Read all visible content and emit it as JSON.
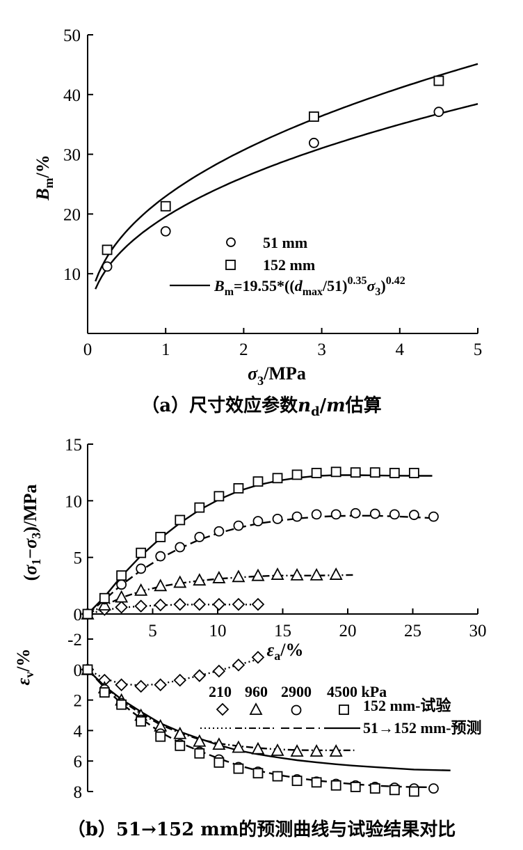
{
  "chart_data": [
    {
      "type": "scatter",
      "panel": "a",
      "caption": "（a）尺寸效应参数n_d/m估算",
      "xlabel": "σ3/MPa",
      "ylabel": "Bm/%",
      "xlim": [
        0,
        5
      ],
      "ylim": [
        0,
        50
      ],
      "xticks": [
        0,
        1,
        2,
        3,
        4,
        5
      ],
      "yticks": [
        10,
        20,
        30,
        40,
        50
      ],
      "grid": false,
      "legend_position": "center-right",
      "legend": [
        "51 mm",
        "152 mm",
        "Bm=19.55*((dmax/51)^0.35σ3)^0.42"
      ],
      "series": [
        {
          "name": "51 mm",
          "marker": "circle",
          "x": [
            0.25,
            1.0,
            2.9,
            4.5
          ],
          "y": [
            11.2,
            17.1,
            31.9,
            37.1
          ]
        },
        {
          "name": "152 mm",
          "marker": "square",
          "x": [
            0.25,
            1.0,
            2.9,
            4.5
          ],
          "y": [
            14.0,
            21.3,
            36.3,
            42.3
          ]
        }
      ],
      "fit": {
        "expression": "Bm=19.55*((dmax/51)^0.35σ3)^0.42",
        "coefficient": 19.55,
        "base_size": 51,
        "size_exponent": 0.35,
        "stress_exponent": 0.42,
        "dmax_values": [
          51,
          152
        ],
        "x_range": [
          0.1,
          5
        ]
      }
    },
    {
      "type": "scatter",
      "panel": "b",
      "caption": "（b）51→152 mm的预测曲线与试验结果对比",
      "xlabel": "εa/%",
      "ylabel_top": "(σ1−σ3)/MPa",
      "ylabel_bottom": "εv/%",
      "xlim": [
        0,
        30
      ],
      "xticks": [
        5,
        10,
        15,
        20,
        25,
        30
      ],
      "ylim_top": [
        0,
        15
      ],
      "yticks_top": [
        0,
        5,
        10,
        15
      ],
      "ylim_bottom": [
        -2,
        8
      ],
      "yticks_bottom": [
        -2,
        0,
        2,
        4,
        6,
        8
      ],
      "grid": false,
      "legend_position": "lower-right",
      "legend_header": [
        "210",
        "960",
        "2900",
        "4500 kPa"
      ],
      "legend_rows": [
        "152 mm-试验",
        "51→152 mm-预测"
      ],
      "series": [
        {
          "name": "210 kPa",
          "marker": "diamond",
          "line": "dotted",
          "x": [
            0,
            1.3,
            2.6,
            4.1,
            5.6,
            7.1,
            8.6,
            10.1,
            11.6,
            13.1
          ],
          "stress": [
            0,
            0.4,
            0.6,
            0.7,
            0.8,
            0.85,
            0.85,
            0.85,
            0.85,
            0.85
          ],
          "pred_stress_x": [
            0,
            13.1
          ],
          "strain_x": [
            0,
            1.3,
            2.6,
            4.1,
            5.6,
            7.1,
            8.6,
            10.1,
            11.6,
            13.1
          ],
          "strain": [
            0,
            0.7,
            1.0,
            1.1,
            1.0,
            0.7,
            0.4,
            0.1,
            -0.3,
            -0.8
          ]
        },
        {
          "name": "960 kPa",
          "marker": "triangle",
          "line": "dash-dot",
          "x": [
            0,
            1.3,
            2.6,
            4.1,
            5.6,
            7.1,
            8.6,
            10.1,
            11.6,
            13.1,
            14.6,
            16.1,
            17.6,
            19.1
          ],
          "stress": [
            0,
            0.8,
            1.5,
            2.1,
            2.5,
            2.8,
            3.0,
            3.2,
            3.3,
            3.4,
            3.5,
            3.45,
            3.45,
            3.5
          ],
          "pred_stress_x": [
            0,
            20.5
          ],
          "strain_x": [
            0,
            1.3,
            2.6,
            4.1,
            5.6,
            7.1,
            8.6,
            10.1,
            11.6,
            13.1,
            14.6,
            16.1,
            17.6,
            19.1
          ],
          "strain": [
            0,
            1.2,
            2.0,
            3.0,
            3.7,
            4.2,
            4.7,
            4.9,
            5.1,
            5.2,
            5.3,
            5.35,
            5.35,
            5.35
          ]
        },
        {
          "name": "2900 kPa",
          "marker": "circle",
          "line": "dashed",
          "x": [
            0,
            1.3,
            2.6,
            4.1,
            5.6,
            7.1,
            8.6,
            10.1,
            11.6,
            13.1,
            14.6,
            16.1,
            17.6,
            19.1,
            20.6,
            22.1,
            23.6,
            25.1,
            26.6
          ],
          "stress": [
            0,
            1.3,
            2.6,
            4.0,
            5.1,
            5.9,
            6.8,
            7.3,
            7.8,
            8.2,
            8.4,
            8.6,
            8.8,
            8.8,
            8.9,
            8.85,
            8.8,
            8.75,
            8.6
          ],
          "pred_stress_x": [
            0,
            26.5
          ],
          "strain_x": [
            0,
            1.3,
            2.6,
            4.1,
            5.6,
            7.1,
            8.6,
            10.1,
            11.6,
            13.1,
            14.6,
            16.1,
            17.6,
            19.1,
            20.6,
            22.1,
            23.6,
            25.1,
            26.6
          ],
          "strain": [
            0,
            1.3,
            2.2,
            3.3,
            4.2,
            4.9,
            5.4,
            5.9,
            6.4,
            6.7,
            7.0,
            7.2,
            7.35,
            7.5,
            7.6,
            7.7,
            7.75,
            7.8,
            7.8
          ]
        },
        {
          "name": "4500 kPa",
          "marker": "square",
          "line": "solid",
          "x": [
            0,
            1.3,
            2.6,
            4.1,
            5.6,
            7.1,
            8.6,
            10.1,
            11.6,
            13.1,
            14.6,
            16.1,
            17.6,
            19.1,
            20.6,
            22.1,
            23.6,
            25.1
          ],
          "stress": [
            0,
            1.4,
            3.4,
            5.4,
            6.8,
            8.3,
            9.4,
            10.4,
            11.1,
            11.7,
            12.0,
            12.3,
            12.45,
            12.55,
            12.5,
            12.5,
            12.45,
            12.45
          ],
          "pred_stress_x": [
            0,
            26.5
          ],
          "strain_x": [
            0,
            1.3,
            2.6,
            4.1,
            5.6,
            7.1,
            8.6,
            10.1,
            11.6,
            13.1,
            14.6,
            16.1,
            17.6,
            19.1,
            20.6,
            22.1,
            23.6,
            25.1
          ],
          "strain": [
            0,
            1.5,
            2.3,
            3.4,
            4.4,
            5.0,
            5.5,
            6.1,
            6.5,
            6.8,
            7.0,
            7.3,
            7.4,
            7.6,
            7.7,
            7.8,
            7.9,
            8.0
          ]
        }
      ]
    }
  ]
}
